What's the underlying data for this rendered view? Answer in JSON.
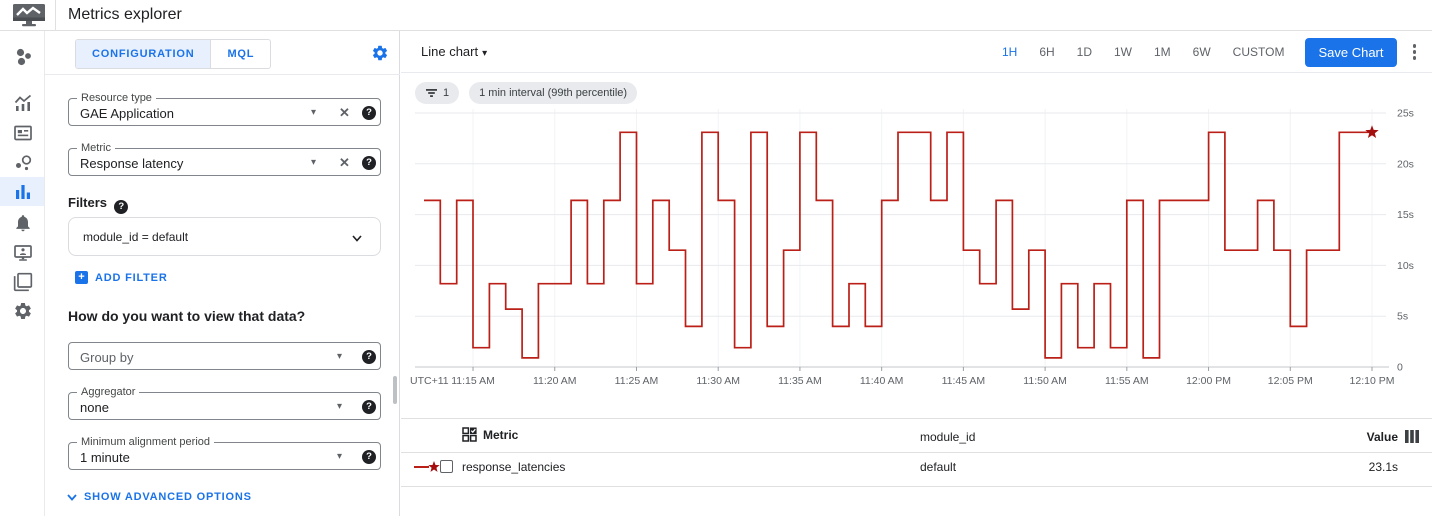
{
  "header": {
    "title": "Metrics explorer"
  },
  "nav": {
    "icons": [
      "monitoring-overview-icon",
      "metrics-icon",
      "dashboards-icon",
      "services-icon",
      "metrics-explorer-icon",
      "alerting-icon",
      "uptime-checks-icon",
      "groups-icon",
      "settings-icon"
    ],
    "active": "metrics-explorer-icon"
  },
  "config": {
    "tabs": [
      {
        "label": "CONFIGURATION",
        "active": true
      },
      {
        "label": "MQL",
        "active": false
      }
    ],
    "resource_type": {
      "label": "Resource type",
      "value": "GAE Application"
    },
    "metric": {
      "label": "Metric",
      "value": "Response latency"
    },
    "filters_label": "Filters",
    "filter_chip": "module_id = default",
    "add_filter_label": "ADD FILTER",
    "view_question": "How do you want to view that data?",
    "group_by": {
      "placeholder": "Group by"
    },
    "aggregator": {
      "label": "Aggregator",
      "value": "none"
    },
    "min_alignment": {
      "label": "Minimum alignment period",
      "value": "1 minute"
    },
    "show_advanced_label": "SHOW ADVANCED OPTIONS",
    "help_glyph": "?"
  },
  "toolbar": {
    "chart_type": "Line chart",
    "time_ranges": [
      "1H",
      "6H",
      "1D",
      "1W",
      "1M",
      "6W",
      "CUSTOM"
    ],
    "active_range": "1H",
    "save_label": "Save Chart"
  },
  "chips": {
    "filter_count": "1",
    "interval": "1 min interval (99th percentile)"
  },
  "chart_data": {
    "type": "line",
    "step": true,
    "unit": "s",
    "x_start": "11:12 AM",
    "x_end": "12:10 PM",
    "x_tick_labels": [
      "UTC+11",
      "11:15 AM",
      "11:20 AM",
      "11:25 AM",
      "11:30 AM",
      "11:35 AM",
      "11:40 AM",
      "11:45 AM",
      "11:50 AM",
      "11:55 AM",
      "12:00 PM",
      "12:05 PM",
      "12:10 PM"
    ],
    "y_tick_labels": [
      "25s",
      "20s",
      "15s",
      "10s",
      "5s",
      "0"
    ],
    "y_tick_values": [
      25,
      20,
      15,
      10,
      5,
      0
    ],
    "ylim": [
      0,
      25.8
    ],
    "legend_position": "table-below",
    "grid": true,
    "marker": "star-at-last-point",
    "series": [
      {
        "name": "response_latencies",
        "color": "#bb2018",
        "star_color": "#a50e0e",
        "interval_minutes": 1,
        "values": [
          16.4,
          8.2,
          16.4,
          1.9,
          8.2,
          5.7,
          0.9,
          8.2,
          8.2,
          16.4,
          8.2,
          16.4,
          23.1,
          8.2,
          16.4,
          11.5,
          4.0,
          23.1,
          16.4,
          1.9,
          23.1,
          4.0,
          11.5,
          23.1,
          16.4,
          4.0,
          8.2,
          4.0,
          16.4,
          23.1,
          23.1,
          16.4,
          23.1,
          11.5,
          8.2,
          16.4,
          5.7,
          11.5,
          0.9,
          8.2,
          1.9,
          8.2,
          1.9,
          16.4,
          0.9,
          16.4,
          16.4,
          16.4,
          23.1,
          11.5,
          11.5,
          16.4,
          11.5,
          4.0,
          11.5,
          11.5,
          23.1,
          23.1,
          23.1
        ]
      }
    ]
  },
  "table": {
    "columns": [
      "Metric",
      "module_id",
      "Value"
    ],
    "rows": [
      {
        "metric": "response_latencies",
        "module_id": "default",
        "value": "23.1s"
      }
    ]
  },
  "colors": {
    "accent": "#1a73e8",
    "chart_line": "#bb2018",
    "chart_star": "#a50e0e",
    "active_bg": "#e8f0fe"
  }
}
